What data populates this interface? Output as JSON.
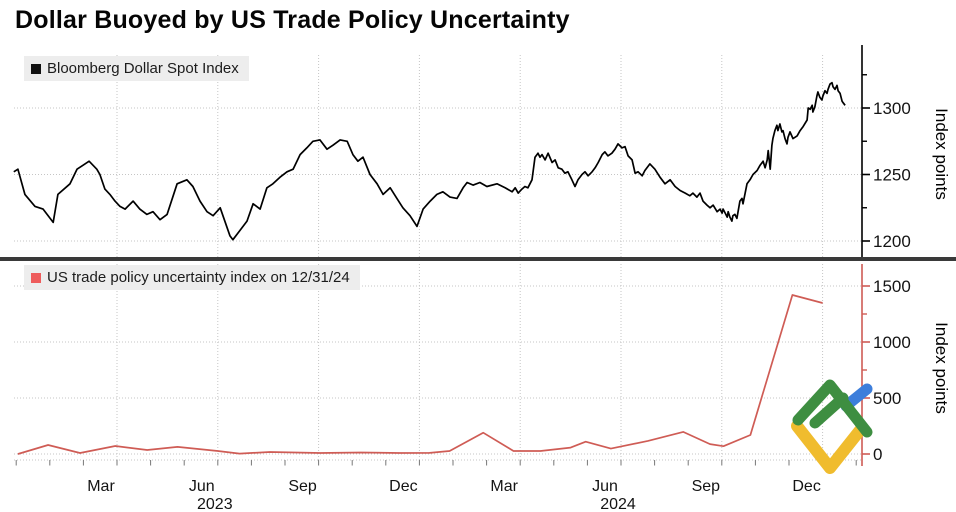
{
  "title": "Dollar Buoyed by US Trade Policy Uncertainty",
  "panels": [
    {
      "legend": "Bloomberg Dollar Spot Index",
      "axis_label": "Index points",
      "line_color": "#000000",
      "axis_color": "#000000",
      "swatch_color": "#111111"
    },
    {
      "legend": "US trade policy uncertainty index on 12/31/24",
      "axis_label": "Index points",
      "line_color": "#cf5c55",
      "axis_color": "#cf5c55",
      "swatch_color": "#ee5c5c"
    }
  ],
  "x_axis": {
    "quarter_labels": [
      {
        "label": "Mar",
        "month": 2
      },
      {
        "label": "Jun",
        "month": 5
      },
      {
        "label": "Sep",
        "month": 8
      },
      {
        "label": "Dec",
        "month": 11
      },
      {
        "label": "Mar",
        "month": 14
      },
      {
        "label": "Jun",
        "month": 17
      },
      {
        "label": "Sep",
        "month": 20
      },
      {
        "label": "Dec",
        "month": 23
      }
    ],
    "year_labels": [
      {
        "label": "2023",
        "month": 5
      },
      {
        "label": "2024",
        "month": 17
      }
    ],
    "grid_months": [
      2,
      5,
      8,
      11,
      14,
      17,
      20,
      23
    ]
  },
  "chart_data": [
    {
      "type": "line",
      "name": "Bloomberg Dollar Spot Index",
      "x_unit": "months since Jan 2023",
      "y_unit": "Index points",
      "ylim": [
        1190,
        1340
      ],
      "y_ticks_major": [
        1200,
        1250,
        1300
      ],
      "y_ticks_minor": [
        1225,
        1275,
        1325
      ],
      "y_grid": [
        1200,
        1250,
        1300
      ],
      "points": [
        [
          -1.07,
          1252
        ],
        [
          -0.95,
          1254
        ],
        [
          -0.74,
          1235
        ],
        [
          -0.44,
          1226
        ],
        [
          -0.2,
          1224
        ],
        [
          0.1,
          1214
        ],
        [
          0.24,
          1235
        ],
        [
          0.6,
          1243
        ],
        [
          0.81,
          1254
        ],
        [
          0.99,
          1257
        ],
        [
          1.17,
          1260
        ],
        [
          1.4,
          1254
        ],
        [
          1.49,
          1250
        ],
        [
          1.64,
          1239
        ],
        [
          1.79,
          1235
        ],
        [
          1.94,
          1230
        ],
        [
          2.09,
          1226
        ],
        [
          2.24,
          1224
        ],
        [
          2.48,
          1230
        ],
        [
          2.68,
          1224
        ],
        [
          2.89,
          1220
        ],
        [
          3.07,
          1222
        ],
        [
          3.28,
          1216
        ],
        [
          3.49,
          1220
        ],
        [
          3.79,
          1243
        ],
        [
          4.08,
          1246
        ],
        [
          4.26,
          1241
        ],
        [
          4.47,
          1230
        ],
        [
          4.68,
          1222
        ],
        [
          4.86,
          1219
        ],
        [
          5.07,
          1225
        ],
        [
          5.36,
          1204
        ],
        [
          5.45,
          1201
        ],
        [
          5.66,
          1208
        ],
        [
          5.87,
          1215
        ],
        [
          6.05,
          1228
        ],
        [
          6.26,
          1224
        ],
        [
          6.46,
          1240
        ],
        [
          6.64,
          1243
        ],
        [
          6.85,
          1248
        ],
        [
          7.06,
          1252
        ],
        [
          7.24,
          1254
        ],
        [
          7.45,
          1265
        ],
        [
          7.65,
          1270
        ],
        [
          7.83,
          1275
        ],
        [
          8.04,
          1276
        ],
        [
          8.25,
          1269
        ],
        [
          8.43,
          1272
        ],
        [
          8.64,
          1276
        ],
        [
          8.85,
          1275
        ],
        [
          9.02,
          1265
        ],
        [
          9.17,
          1260
        ],
        [
          9.32,
          1263
        ],
        [
          9.53,
          1250
        ],
        [
          9.74,
          1243
        ],
        [
          9.92,
          1235
        ],
        [
          10.13,
          1240
        ],
        [
          10.33,
          1232
        ],
        [
          10.51,
          1225
        ],
        [
          10.72,
          1219
        ],
        [
          10.93,
          1211
        ],
        [
          11.11,
          1224
        ],
        [
          11.32,
          1230
        ],
        [
          11.52,
          1235
        ],
        [
          11.7,
          1237
        ],
        [
          11.91,
          1233
        ],
        [
          12.12,
          1232
        ],
        [
          12.3,
          1240
        ],
        [
          12.42,
          1244
        ],
        [
          12.6,
          1242
        ],
        [
          12.8,
          1244
        ],
        [
          13.01,
          1241
        ],
        [
          13.31,
          1243
        ],
        [
          13.55,
          1240
        ],
        [
          13.76,
          1237
        ],
        [
          13.85,
          1240
        ],
        [
          13.94,
          1236
        ],
        [
          14.05,
          1239
        ],
        [
          14.14,
          1241
        ],
        [
          14.23,
          1240
        ],
        [
          14.35,
          1246
        ],
        [
          14.44,
          1263
        ],
        [
          14.53,
          1266
        ],
        [
          14.59,
          1263
        ],
        [
          14.65,
          1265
        ],
        [
          14.74,
          1261
        ],
        [
          14.83,
          1266
        ],
        [
          14.95,
          1259
        ],
        [
          15.04,
          1261
        ],
        [
          15.13,
          1255
        ],
        [
          15.24,
          1254
        ],
        [
          15.33,
          1251
        ],
        [
          15.42,
          1252
        ],
        [
          15.54,
          1246
        ],
        [
          15.63,
          1241
        ],
        [
          15.72,
          1246
        ],
        [
          15.84,
          1250
        ],
        [
          15.93,
          1252
        ],
        [
          16.02,
          1249
        ],
        [
          16.14,
          1252
        ],
        [
          16.23,
          1255
        ],
        [
          16.32,
          1259
        ],
        [
          16.44,
          1265
        ],
        [
          16.52,
          1267
        ],
        [
          16.61,
          1264
        ],
        [
          16.73,
          1266
        ],
        [
          16.82,
          1269
        ],
        [
          16.91,
          1273
        ],
        [
          17.03,
          1270
        ],
        [
          17.12,
          1271
        ],
        [
          17.21,
          1264
        ],
        [
          17.33,
          1261
        ],
        [
          17.42,
          1251
        ],
        [
          17.51,
          1252
        ],
        [
          17.63,
          1249
        ],
        [
          17.71,
          1253
        ],
        [
          17.86,
          1258
        ],
        [
          18.01,
          1254
        ],
        [
          18.16,
          1248
        ],
        [
          18.31,
          1243
        ],
        [
          18.46,
          1246
        ],
        [
          18.61,
          1241
        ],
        [
          18.76,
          1238
        ],
        [
          18.91,
          1236
        ],
        [
          19.05,
          1234
        ],
        [
          19.14,
          1236
        ],
        [
          19.26,
          1233
        ],
        [
          19.35,
          1236
        ],
        [
          19.44,
          1230
        ],
        [
          19.56,
          1227
        ],
        [
          19.65,
          1225
        ],
        [
          19.74,
          1227
        ],
        [
          19.86,
          1222
        ],
        [
          19.95,
          1224
        ],
        [
          20.01,
          1221
        ],
        [
          20.04,
          1224
        ],
        [
          20.1,
          1221
        ],
        [
          20.16,
          1218
        ],
        [
          20.19,
          1222
        ],
        [
          20.24,
          1218
        ],
        [
          20.3,
          1215
        ],
        [
          20.33,
          1219
        ],
        [
          20.39,
          1220
        ],
        [
          20.45,
          1217
        ],
        [
          20.54,
          1230
        ],
        [
          20.6,
          1232
        ],
        [
          20.63,
          1228
        ],
        [
          20.75,
          1243
        ],
        [
          20.84,
          1246
        ],
        [
          20.93,
          1250
        ],
        [
          21.05,
          1253
        ],
        [
          21.14,
          1257
        ],
        [
          21.23,
          1260
        ],
        [
          21.29,
          1255
        ],
        [
          21.35,
          1261
        ],
        [
          21.38,
          1268
        ],
        [
          21.44,
          1254
        ],
        [
          21.49,
          1272
        ],
        [
          21.52,
          1277
        ],
        [
          21.58,
          1283
        ],
        [
          21.64,
          1287
        ],
        [
          21.67,
          1283
        ],
        [
          21.73,
          1288
        ],
        [
          21.79,
          1282
        ],
        [
          21.82,
          1283
        ],
        [
          21.88,
          1277
        ],
        [
          21.94,
          1273
        ],
        [
          21.97,
          1278
        ],
        [
          22.03,
          1282
        ],
        [
          22.12,
          1277
        ],
        [
          22.24,
          1279
        ],
        [
          22.33,
          1283
        ],
        [
          22.42,
          1286
        ],
        [
          22.54,
          1291
        ],
        [
          22.57,
          1300
        ],
        [
          22.63,
          1299
        ],
        [
          22.69,
          1302
        ],
        [
          22.71,
          1297
        ],
        [
          22.77,
          1301
        ],
        [
          22.83,
          1309
        ],
        [
          22.86,
          1312
        ],
        [
          22.92,
          1308
        ],
        [
          22.98,
          1306
        ],
        [
          23.01,
          1309
        ],
        [
          23.07,
          1313
        ],
        [
          23.13,
          1311
        ],
        [
          23.16,
          1314
        ],
        [
          23.22,
          1318
        ],
        [
          23.28,
          1319
        ],
        [
          23.31,
          1316
        ],
        [
          23.37,
          1314
        ],
        [
          23.43,
          1317
        ],
        [
          23.46,
          1313
        ],
        [
          23.52,
          1311
        ],
        [
          23.58,
          1305
        ],
        [
          23.61,
          1304
        ],
        [
          23.67,
          1302
        ]
      ]
    },
    {
      "type": "line",
      "name": "US trade policy uncertainty index on 12/31/24",
      "x_unit": "months since Jan 2023",
      "y_unit": "Index points",
      "ylim": [
        -50,
        1700
      ],
      "y_ticks_major": [
        0,
        500,
        1000,
        1500
      ],
      "y_ticks_minor": [
        250,
        750,
        1250
      ],
      "y_grid": [
        0,
        500,
        1000,
        1500
      ],
      "points": [
        [
          -0.95,
          0
        ],
        [
          -0.05,
          80
        ],
        [
          0.9,
          9
        ],
        [
          1.95,
          71
        ],
        [
          2.9,
          36
        ],
        [
          3.8,
          63
        ],
        [
          5.0,
          27
        ],
        [
          5.65,
          4
        ],
        [
          6.55,
          18
        ],
        [
          8.05,
          9
        ],
        [
          9.25,
          13
        ],
        [
          10.4,
          9
        ],
        [
          11.3,
          10
        ],
        [
          11.9,
          27
        ],
        [
          12.9,
          190
        ],
        [
          13.8,
          27
        ],
        [
          14.6,
          27
        ],
        [
          15.5,
          57
        ],
        [
          15.95,
          110
        ],
        [
          16.7,
          48
        ],
        [
          17.8,
          117
        ],
        [
          18.85,
          197
        ],
        [
          19.65,
          88
        ],
        [
          20.05,
          70
        ],
        [
          20.85,
          170
        ],
        [
          22.1,
          1420
        ],
        [
          23.0,
          1348
        ]
      ]
    }
  ],
  "logo": {
    "green": "#3e8e41",
    "blue": "#3d7edb",
    "yellow": "#f0bc2e"
  },
  "colors": {
    "grid": "#c5c5c5",
    "divider": "#3a3a3a",
    "tick_text": "#141414",
    "legend_bg": "#ededed"
  }
}
